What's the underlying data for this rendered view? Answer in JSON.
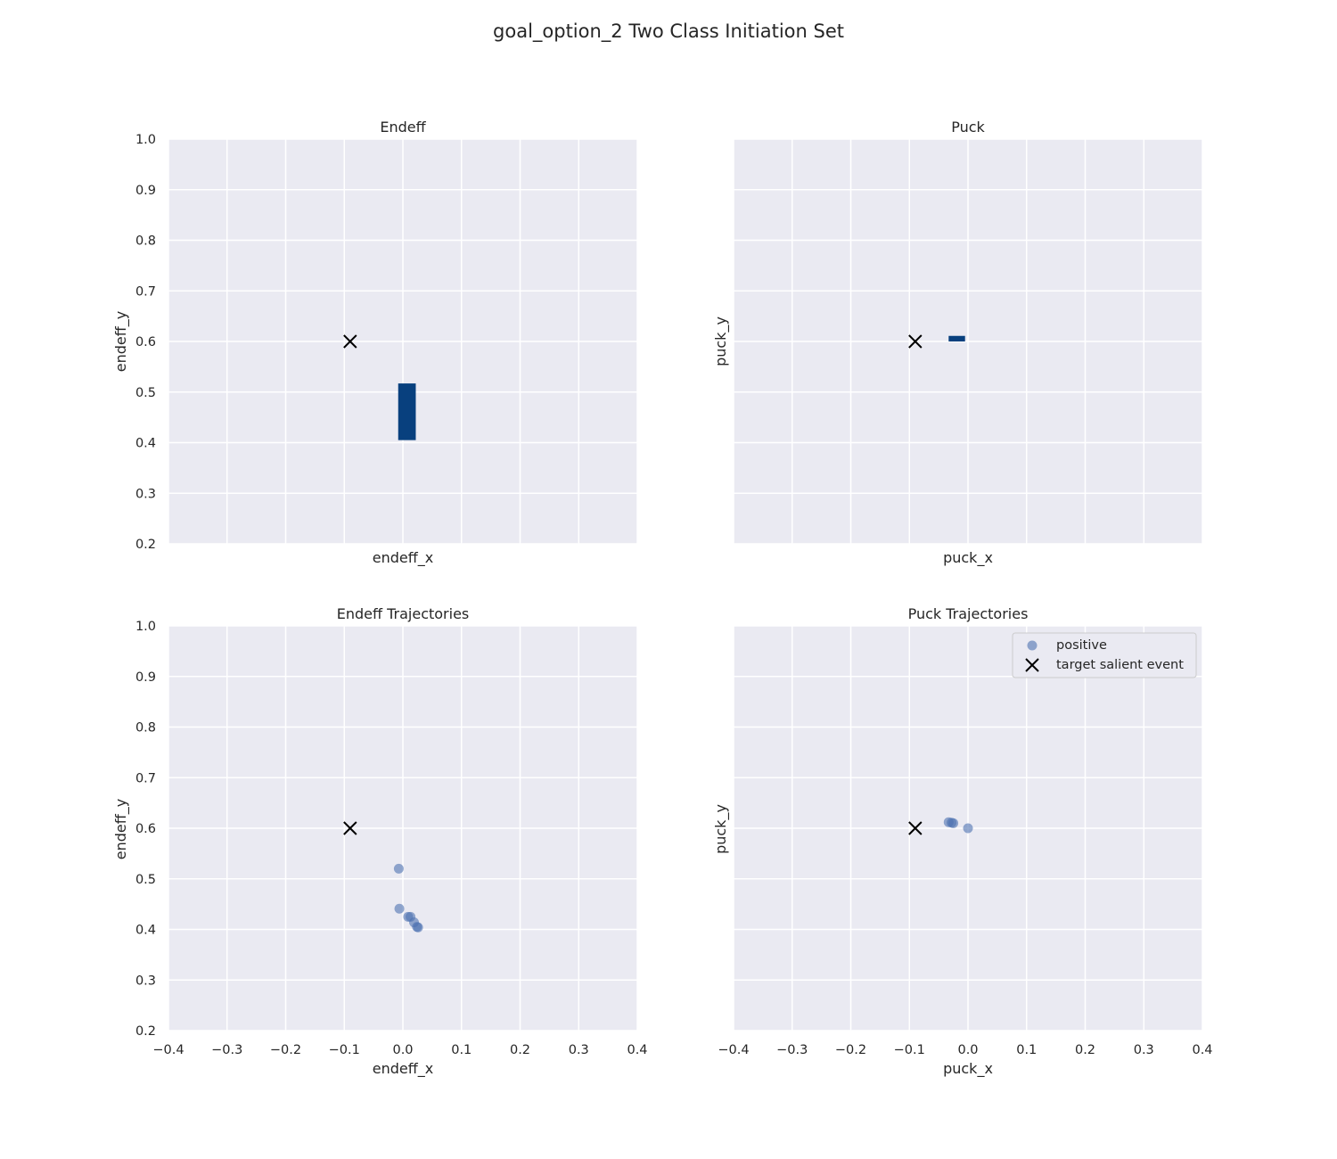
{
  "figure": {
    "title": "goal_option_2 Two Class Initiation Set"
  },
  "chart_data": [
    {
      "type": "heatmap",
      "title": "Endeff",
      "xlabel": "endeff_x",
      "ylabel": "endeff_y",
      "xlim": [
        -0.4,
        0.4
      ],
      "ylim": [
        0.2,
        1.0
      ],
      "x_ticks_shown": false,
      "y_ticks": [
        "1.0",
        "0.9",
        "0.8",
        "0.7",
        "0.6",
        "0.5",
        "0.4",
        "0.3",
        "0.2"
      ],
      "grid": true,
      "regions": [
        {
          "label": "positive",
          "x": [
            -0.008,
            0.022
          ],
          "y": [
            0.405,
            0.517
          ],
          "color": "#08407e"
        }
      ],
      "target": {
        "x": -0.09,
        "y": 0.6,
        "label": "target salient event"
      }
    },
    {
      "type": "heatmap",
      "title": "Puck",
      "xlabel": "puck_x",
      "ylabel": "puck_y",
      "xlim": [
        -0.4,
        0.4
      ],
      "ylim": [
        0.2,
        1.0
      ],
      "x_ticks_shown": false,
      "y_ticks_shown": false,
      "grid": true,
      "regions": [
        {
          "label": "positive",
          "x": [
            -0.033,
            -0.005
          ],
          "y": [
            0.6,
            0.611
          ],
          "color": "#08407e"
        }
      ],
      "target": {
        "x": -0.09,
        "y": 0.6,
        "label": "target salient event"
      }
    },
    {
      "type": "scatter",
      "title": "Endeff Trajectories",
      "xlabel": "endeff_x",
      "ylabel": "endeff_y",
      "xlim": [
        -0.4,
        0.4
      ],
      "ylim": [
        0.2,
        1.0
      ],
      "x_ticks": [
        "−0.4",
        "−0.3",
        "−0.2",
        "−0.1",
        "0.0",
        "0.1",
        "0.2",
        "0.3",
        "0.4"
      ],
      "y_ticks": [
        "1.0",
        "0.9",
        "0.8",
        "0.7",
        "0.6",
        "0.5",
        "0.4",
        "0.3",
        "0.2"
      ],
      "grid": true,
      "series": [
        {
          "name": "positive",
          "color": "#4c72b0",
          "points": [
            {
              "x": -0.007,
              "y": 0.52
            },
            {
              "x": -0.006,
              "y": 0.441
            },
            {
              "x": 0.009,
              "y": 0.425
            },
            {
              "x": 0.013,
              "y": 0.425
            },
            {
              "x": 0.019,
              "y": 0.414
            },
            {
              "x": 0.024,
              "y": 0.405
            },
            {
              "x": 0.026,
              "y": 0.404
            }
          ]
        }
      ],
      "target": {
        "x": -0.09,
        "y": 0.6,
        "label": "target salient event"
      }
    },
    {
      "type": "scatter",
      "title": "Puck Trajectories",
      "xlabel": "puck_x",
      "ylabel": "puck_y",
      "xlim": [
        -0.4,
        0.4
      ],
      "ylim": [
        0.2,
        1.0
      ],
      "x_ticks": [
        "−0.4",
        "−0.3",
        "−0.2",
        "−0.1",
        "0.0",
        "0.1",
        "0.2",
        "0.3",
        "0.4"
      ],
      "y_ticks_shown": false,
      "grid": true,
      "legend": {
        "placement": "upper right",
        "entries": [
          "positive",
          "target salient event"
        ]
      },
      "series": [
        {
          "name": "positive",
          "color": "#4c72b0",
          "points": [
            {
              "x": -0.033,
              "y": 0.612
            },
            {
              "x": -0.028,
              "y": 0.611
            },
            {
              "x": -0.025,
              "y": 0.61
            },
            {
              "x": 0.0,
              "y": 0.6
            }
          ]
        }
      ],
      "target": {
        "x": -0.09,
        "y": 0.6,
        "label": "target salient event"
      }
    }
  ]
}
